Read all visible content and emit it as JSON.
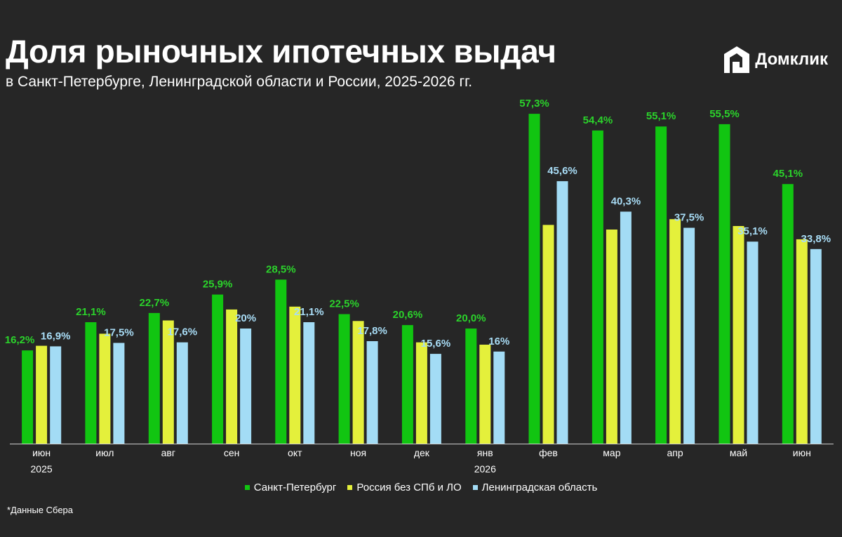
{
  "header": {
    "title": "Доля рыночных ипотечных выдач",
    "subtitle": "в Санкт-Петербурге, Ленинградской области и России, 2025-2026 гг."
  },
  "brand": {
    "name": "Домклик",
    "icon": "domclick-house-logo-icon"
  },
  "footnote": "*Данные Сбера",
  "colors": {
    "background": "#262626",
    "spb": "#11c511",
    "russia": "#e4f03b",
    "lo": "#a3dcf5",
    "spb_label": "#2bd32b",
    "lo_label": "#a8dcf5",
    "axis": "#d0d0d0",
    "text": "#ffffff"
  },
  "chart_data": {
    "type": "bar",
    "categories": [
      "июн",
      "июл",
      "авг",
      "сен",
      "окт",
      "ноя",
      "дек",
      "янв",
      "фев",
      "мар",
      "апр",
      "май",
      "июн"
    ],
    "year_labels": [
      {
        "category_index": 0,
        "label": "2025"
      },
      {
        "category_index": 7,
        "label": "2026"
      }
    ],
    "series": [
      {
        "name": "Санкт-Петербург",
        "color": "#11c511",
        "values": [
          16.2,
          21.1,
          22.7,
          25.9,
          28.5,
          22.5,
          20.6,
          20.0,
          57.3,
          54.4,
          55.1,
          55.5,
          45.1
        ],
        "labels": [
          "16,2%",
          "21,1%",
          "22,7%",
          "25,9%",
          "28,5%",
          "22,5%",
          "20,6%",
          "20,0%",
          "57,3%",
          "54,4%",
          "55,1%",
          "55,5%",
          "45,1%"
        ]
      },
      {
        "name": "Россия без СПб и ЛО",
        "color": "#e4f03b",
        "values": [
          17.0,
          19.1,
          21.4,
          23.3,
          23.8,
          21.3,
          17.6,
          17.2,
          38.0,
          37.2,
          39.0,
          37.8,
          35.5
        ],
        "labels": []
      },
      {
        "name": "Ленинградская область",
        "color": "#a3dcf5",
        "values": [
          16.9,
          17.5,
          17.6,
          20.0,
          21.1,
          17.8,
          15.6,
          16.0,
          45.6,
          40.3,
          37.5,
          35.1,
          33.8
        ],
        "labels": [
          "16,9%",
          "17,5%",
          "17,6%",
          "20%",
          "21,1%",
          "17,8%",
          "15,6%",
          "16%",
          "45,6%",
          "40,3%",
          "37,5%",
          "35,1%",
          "33,8%"
        ]
      }
    ],
    "ylim": [
      0,
      60
    ],
    "grid": false,
    "legend": "bottom-center",
    "xlabel": "",
    "ylabel": ""
  }
}
